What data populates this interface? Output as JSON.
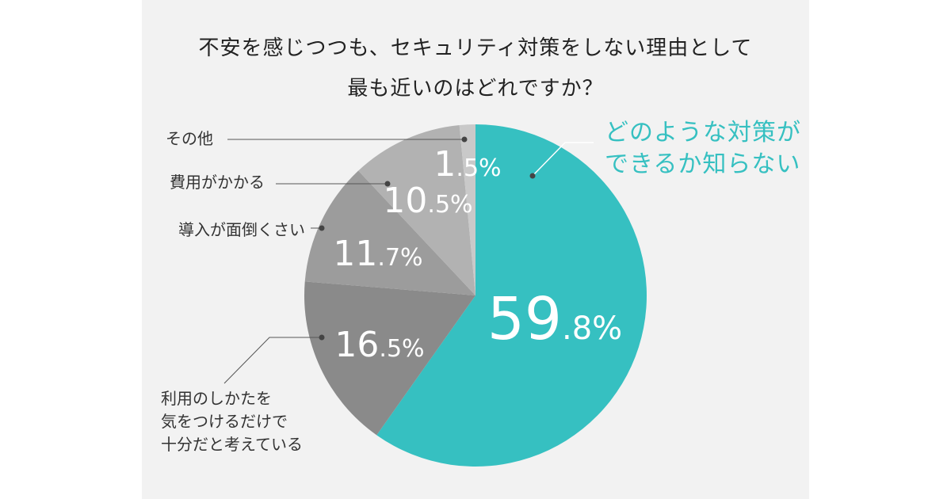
{
  "title": [
    "不安を感じつつも、セキュリティ対策をしない理由として",
    "最も近いのはどれですか？"
  ],
  "colors": {
    "background": "#f2f2f2",
    "accent": "#36c0c1"
  },
  "chart_data": {
    "type": "pie",
    "start_angle_deg": 0,
    "direction": "clockwise",
    "slices": [
      {
        "label_lines": [
          "どのような対策が",
          "できるか知らない"
        ],
        "value": 59.8,
        "value_text": "59.8%",
        "color": "#36c0c1"
      },
      {
        "label_lines": [
          "利用のしかたを",
          "気をつけるだけで",
          "十分だと考えている"
        ],
        "value": 16.5,
        "value_text": "16.5%",
        "color": "#8a8a8a"
      },
      {
        "label_lines": [
          "導入が面倒くさい"
        ],
        "value": 11.7,
        "value_text": "11.7%",
        "color": "#9c9c9c"
      },
      {
        "label_lines": [
          "費用がかかる"
        ],
        "value": 10.5,
        "value_text": "10.5%",
        "color": "#b2b2b2"
      },
      {
        "label_lines": [
          "その他"
        ],
        "value": 1.5,
        "value_text": "1.5%",
        "color": "#c9c9c9"
      }
    ]
  }
}
